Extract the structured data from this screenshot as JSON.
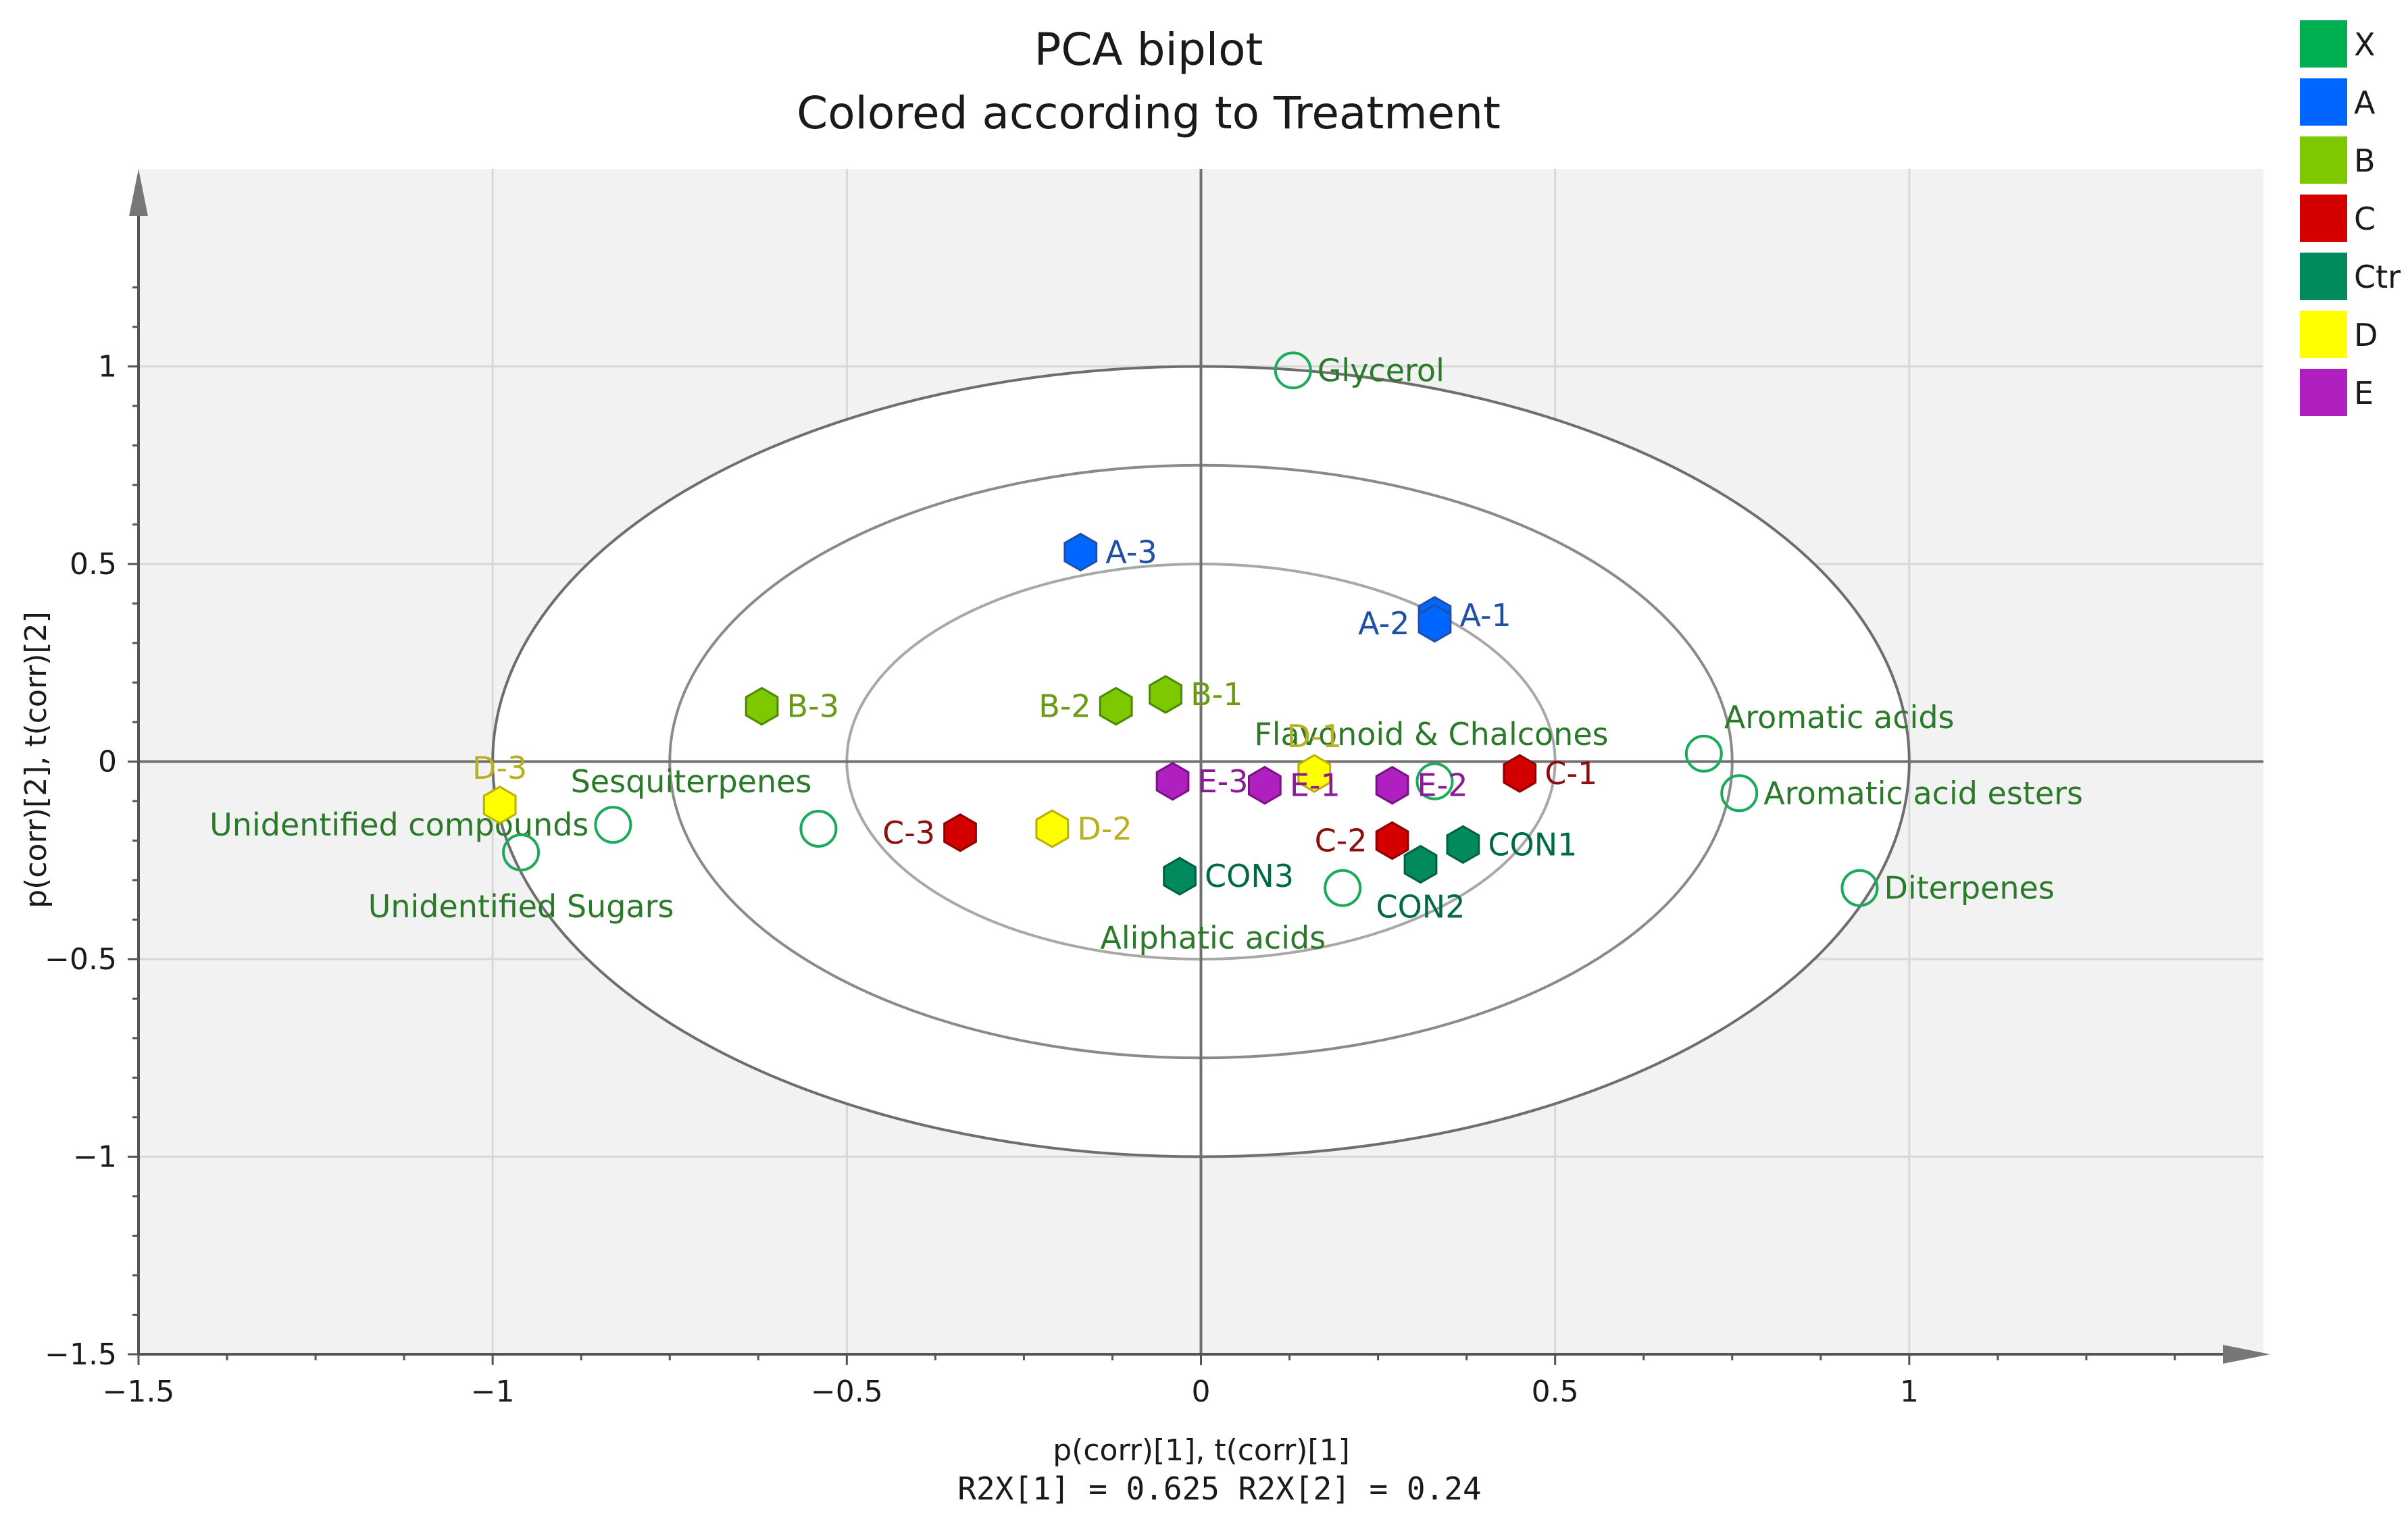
{
  "chart_data": {
    "type": "scatter",
    "title": "PCA biplot",
    "subtitle": "Colored according to Treatment",
    "xlabel": "p(corr)[1], t(corr)[1]",
    "ylabel": "p(corr)[2], t(corr)[2]",
    "footer": "R2X[1] = 0.625 R2X[2] = 0.24",
    "xlim": [
      -1.5,
      1.5
    ],
    "ylim": [
      -1.5,
      1.5
    ],
    "xticks": [
      {
        "value": -1.5,
        "label": "−1.5"
      },
      {
        "value": -1,
        "label": "−1"
      },
      {
        "value": -0.5,
        "label": "−0.5"
      },
      {
        "value": 0,
        "label": "0"
      },
      {
        "value": 0.5,
        "label": "0.5"
      },
      {
        "value": 1,
        "label": "1"
      }
    ],
    "yticks": [
      {
        "value": 1,
        "label": "1"
      },
      {
        "value": 0.5,
        "label": "0.5"
      },
      {
        "value": 0,
        "label": "0"
      },
      {
        "value": -0.5,
        "label": "−0.5"
      },
      {
        "value": -1,
        "label": "−1"
      },
      {
        "value": -1.5,
        "label": "−1.5"
      }
    ],
    "ellipses": [
      {
        "rx": 1.0,
        "ry": 1.0
      },
      {
        "rx": 0.75,
        "ry": 0.75
      },
      {
        "rx": 0.5,
        "ry": 0.5
      }
    ],
    "legend": [
      {
        "key": "X",
        "color": "#00b050"
      },
      {
        "key": "A",
        "color": "#0066ff"
      },
      {
        "key": "B",
        "color": "#7ec800"
      },
      {
        "key": "C",
        "color": "#d40000"
      },
      {
        "key": "Ctr",
        "color": "#008a5e"
      },
      {
        "key": "D",
        "color": "#ffff00"
      },
      {
        "key": "E",
        "color": "#b020c0"
      }
    ],
    "group_colors": {
      "A": {
        "fill": "#0066ff",
        "stroke": "#1f4fa8",
        "label": "#1f4fa8"
      },
      "B": {
        "fill": "#7ec800",
        "stroke": "#4a8a00",
        "label": "#6a9a10"
      },
      "C": {
        "fill": "#d40000",
        "stroke": "#8a0000",
        "label": "#8a1010"
      },
      "Ctr": {
        "fill": "#008a5e",
        "stroke": "#00603f",
        "label": "#006a46"
      },
      "D": {
        "fill": "#ffff00",
        "stroke": "#b8b000",
        "label": "#b8b020"
      },
      "E": {
        "fill": "#b020c0",
        "stroke": "#7a1088",
        "label": "#8a1a98"
      },
      "X": {
        "fill": "none",
        "stroke": "#1aaa5a",
        "label": "#2a7a2a"
      }
    },
    "scores": [
      {
        "name": "A-3",
        "group": "A",
        "x": -0.17,
        "y": 0.53,
        "label_pos": "right"
      },
      {
        "name": "A-1",
        "group": "A",
        "x": 0.33,
        "y": 0.37,
        "label_pos": "right"
      },
      {
        "name": "A-2",
        "group": "A",
        "x": 0.33,
        "y": 0.35,
        "label_pos": "left"
      },
      {
        "name": "B-3",
        "group": "B",
        "x": -0.62,
        "y": 0.14,
        "label_pos": "right"
      },
      {
        "name": "B-2",
        "group": "B",
        "x": -0.12,
        "y": 0.14,
        "label_pos": "left"
      },
      {
        "name": "B-1",
        "group": "B",
        "x": -0.05,
        "y": 0.17,
        "label_pos": "right"
      },
      {
        "name": "C-1",
        "group": "C",
        "x": 0.45,
        "y": -0.03,
        "label_pos": "right"
      },
      {
        "name": "C-2",
        "group": "C",
        "x": 0.27,
        "y": -0.2,
        "label_pos": "left"
      },
      {
        "name": "C-3",
        "group": "C",
        "x": -0.34,
        "y": -0.18,
        "label_pos": "left"
      },
      {
        "name": "CON1",
        "group": "Ctr",
        "x": 0.37,
        "y": -0.21,
        "label_pos": "right"
      },
      {
        "name": "CON2",
        "group": "Ctr",
        "x": 0.31,
        "y": -0.26,
        "label_pos": "below"
      },
      {
        "name": "CON3",
        "group": "Ctr",
        "x": -0.03,
        "y": -0.29,
        "label_pos": "right"
      },
      {
        "name": "D-1",
        "group": "D",
        "x": 0.16,
        "y": -0.03,
        "label_pos": "above"
      },
      {
        "name": "D-2",
        "group": "D",
        "x": -0.21,
        "y": -0.17,
        "label_pos": "right"
      },
      {
        "name": "D-3",
        "group": "D",
        "x": -0.99,
        "y": -0.11,
        "label_pos": "above"
      },
      {
        "name": "E-1",
        "group": "E",
        "x": 0.09,
        "y": -0.06,
        "label_pos": "right"
      },
      {
        "name": "E-2",
        "group": "E",
        "x": 0.27,
        "y": -0.06,
        "label_pos": "right"
      },
      {
        "name": "E-3",
        "group": "E",
        "x": -0.04,
        "y": -0.05,
        "label_pos": "right"
      }
    ],
    "loadings": [
      {
        "name": "Glycerol",
        "group": "X",
        "x": 0.13,
        "y": 0.99,
        "label_pos": "right"
      },
      {
        "name": "Aromatic acids",
        "group": "X",
        "x": 0.71,
        "y": 0.02,
        "label_pos": "above-right"
      },
      {
        "name": "Aromatic acid esters",
        "group": "X",
        "x": 0.76,
        "y": -0.08,
        "label_pos": "right"
      },
      {
        "name": "Diterpenes",
        "group": "X",
        "x": 0.93,
        "y": -0.32,
        "label_pos": "right"
      },
      {
        "name": "Flavonoid & Chalcones",
        "group": "X",
        "x": 0.33,
        "y": -0.05,
        "label_pos": "above-center"
      },
      {
        "name": "Aliphatic acids",
        "group": "X",
        "x": 0.2,
        "y": -0.32,
        "label_pos": "below-left"
      },
      {
        "name": "Sesquiterpenes",
        "group": "X",
        "x": -0.54,
        "y": -0.17,
        "label_pos": "above-left"
      },
      {
        "name": "Unidentified compounds",
        "group": "X",
        "x": -0.83,
        "y": -0.16,
        "label_pos": "left"
      },
      {
        "name": "Unidentified Sugars",
        "group": "X",
        "x": -0.96,
        "y": -0.23,
        "label_pos": "below-center"
      }
    ]
  }
}
